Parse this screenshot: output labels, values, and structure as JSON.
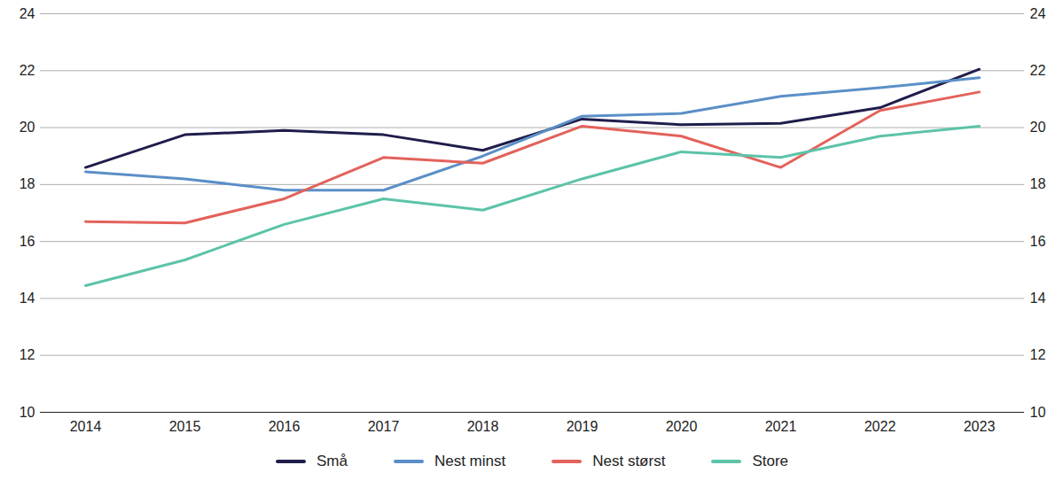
{
  "chart_data": {
    "type": "line",
    "categories": [
      "2014",
      "2015",
      "2016",
      "2017",
      "2018",
      "2019",
      "2020",
      "2021",
      "2022",
      "2023"
    ],
    "series": [
      {
        "name": "Små",
        "color": "#1f1d4b",
        "values": [
          18.6,
          19.75,
          19.9,
          19.75,
          19.2,
          20.3,
          20.1,
          20.15,
          20.7,
          22.05
        ]
      },
      {
        "name": "Nest minst",
        "color": "#5b8fc7",
        "values": [
          18.45,
          18.2,
          17.8,
          17.8,
          19.0,
          20.4,
          20.5,
          21.1,
          21.4,
          21.75
        ]
      },
      {
        "name": "Nest størst",
        "color": "#e3625b",
        "values": [
          16.7,
          16.65,
          17.5,
          18.95,
          18.75,
          20.05,
          19.7,
          18.6,
          20.6,
          21.25
        ]
      },
      {
        "name": "Store",
        "color": "#5cc3a9",
        "values": [
          14.45,
          15.35,
          16.6,
          17.5,
          17.1,
          18.2,
          19.15,
          18.95,
          19.7,
          20.05
        ]
      }
    ],
    "ylim": [
      10,
      24
    ],
    "yticks": [
      10,
      12,
      14,
      16,
      18,
      20,
      22,
      24
    ],
    "grid": true,
    "legend": "bottom"
  }
}
